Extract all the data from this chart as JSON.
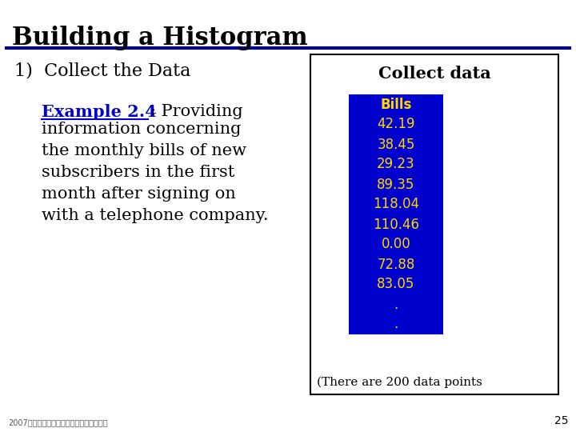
{
  "title": "Building a Histogram",
  "step_label": "1)  Collect the Data",
  "example_label": "Example 2.4",
  "example_colon": ": Providing",
  "example_lines": [
    "information concerning",
    "the monthly bills of new",
    "subscribers in the first",
    "month after signing on",
    "with a telephone company."
  ],
  "collect_data_title": "Collect data",
  "table_header": "Bills",
  "table_values": [
    "42.19",
    "38.45",
    "29.23",
    "89.35",
    "118.04",
    "110.46",
    "0.00",
    "72.88",
    "83.05",
    ".",
    "."
  ],
  "footnote": "(There are 200 data points",
  "footer_text": "2007年秋季全國高中數學（一）學考高考試",
  "page_number": "25",
  "bg_color": "#ffffff",
  "title_color": "#000000",
  "header_line_color": "#00008B",
  "step_color": "#000000",
  "example_link_color": "#0000CD",
  "example_text_color": "#000000",
  "table_bg_color": "#0000CC",
  "table_text_color": "#FFD700",
  "table_header_text_color": "#FFD700",
  "collect_data_title_color": "#000000",
  "footnote_color": "#000000",
  "outer_box_color": "#000000"
}
